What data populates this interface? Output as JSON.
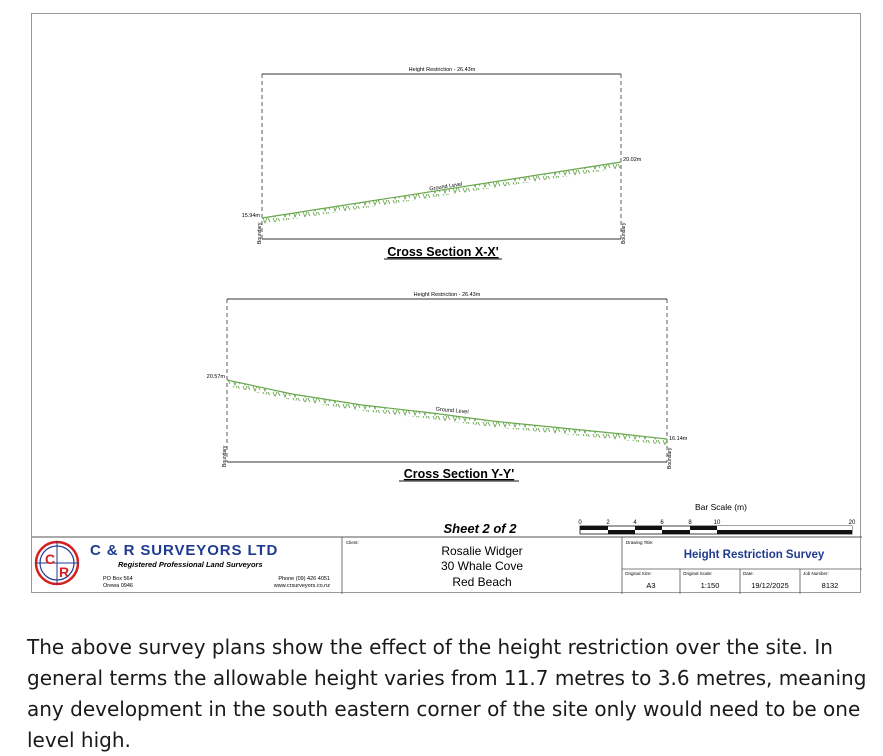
{
  "sections": [
    {
      "id": "xx",
      "height_label": "Height Restriction - 26.43m",
      "ground_label": "Ground Level",
      "left_level": "15.94m",
      "right_level": "20.02m",
      "boundary": "Boundary",
      "title": "Cross Section X-X'"
    },
    {
      "id": "yy",
      "height_label": "Height Restriction - 26.43m",
      "ground_label": "Ground Level",
      "left_level": "20.57m",
      "right_level": "16.14m",
      "boundary": "Boundary",
      "title": "Cross Section Y-Y'"
    }
  ],
  "sheet": "Sheet 2 of 2",
  "bar_scale": {
    "title": "Bar Scale (m)",
    "ticks": [
      "0",
      "2",
      "4",
      "6",
      "8",
      "10",
      "20"
    ]
  },
  "company": {
    "name": "C & R SURVEYORS LTD",
    "logo_letters": [
      "C",
      "R"
    ],
    "subtitle": "Registered Professional Land Surveyors",
    "po_box": "PO Box 564",
    "town": "Orewa 0946",
    "phone": "Phone (09) 426 4051",
    "web": "www.crsurveyors.co.nz"
  },
  "client": {
    "label": "Client:",
    "name": "Rosalie Widger",
    "address1": "30 Whale Cove",
    "address2": "Red Beach"
  },
  "drawing": {
    "title_label": "Drawing Title:",
    "title": "Height Restriction Survey",
    "size_label": "Original Size:",
    "size": "A3",
    "scale_label": "Original Scale:",
    "scale": "1:150",
    "date_label": "Date:",
    "date": "19/12/2025",
    "job_label": "Job Number:",
    "job": "8132"
  },
  "caption": "The above survey plans show the effect of the height restriction over the site. In general terms the allowable height varies from 11.7 metres to 3.6 metres, meaning any development in the south eastern corner of the site only would need to be one level high.",
  "colors": {
    "ground": "#6aa84f",
    "logo_red": "#d62020",
    "logo_blue": "#1f3b8f"
  }
}
